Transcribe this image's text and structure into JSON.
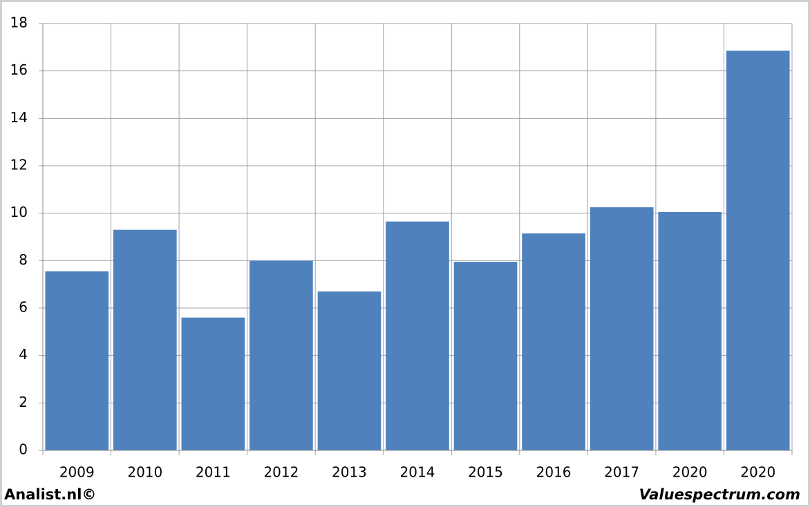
{
  "chart_data": {
    "type": "bar",
    "categories": [
      "2009",
      "2010",
      "2011",
      "2012",
      "2013",
      "2014",
      "2015",
      "2016",
      "2017",
      "2020",
      "2020"
    ],
    "values": [
      7.55,
      9.3,
      5.6,
      8.0,
      6.7,
      9.65,
      7.95,
      9.15,
      10.25,
      10.05,
      16.85
    ],
    "color": "#4f81bd",
    "ylim": [
      0,
      18
    ],
    "yticks": [
      0,
      2,
      4,
      6,
      8,
      10,
      12,
      14,
      16,
      18
    ],
    "grid": true
  },
  "footer": {
    "left": "Analist.nl©",
    "right": "Valuespectrum.com"
  }
}
